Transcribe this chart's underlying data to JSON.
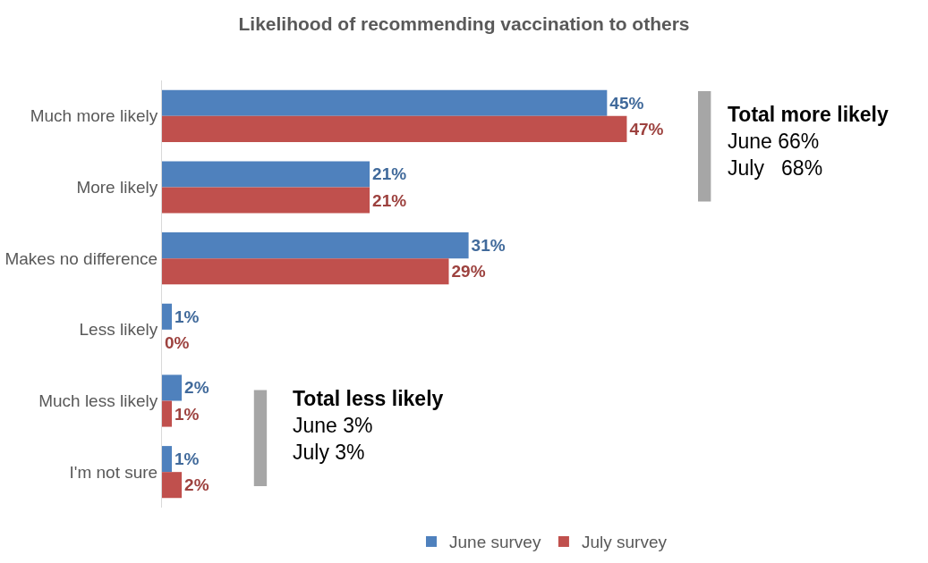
{
  "chart_data": {
    "type": "bar",
    "orientation": "horizontal",
    "title": "Likelihood of recommending vaccination to others",
    "categories": [
      "Much more likely",
      "More likely",
      "Makes no difference",
      "Less likely",
      "Much less likely",
      "I'm not sure"
    ],
    "series": [
      {
        "name": "June survey",
        "color": "#4f81bd",
        "values": [
          45,
          21,
          31,
          1,
          2,
          1
        ],
        "value_labels": [
          "45%",
          "21%",
          "31%",
          "1%",
          "2%",
          "1%"
        ]
      },
      {
        "name": "July survey",
        "color": "#c0504d",
        "values": [
          47,
          21,
          29,
          0,
          1,
          2
        ],
        "value_labels": [
          "47%",
          "21%",
          "29%",
          "0%",
          "1%",
          "2%"
        ]
      }
    ],
    "xlim": [
      0,
      77
    ],
    "grid": false,
    "legend": "bottom",
    "annotations": [
      "Total more likely\nJune 66%\nJuly   68%",
      "Total less likely\nJune 3%\nJuly 3%"
    ]
  }
}
